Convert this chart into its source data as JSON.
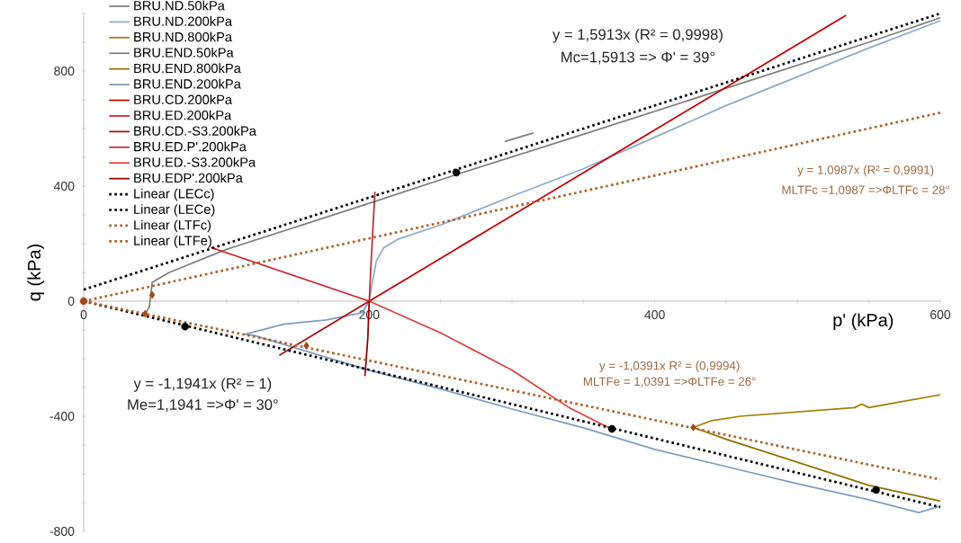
{
  "chart_data": {
    "type": "line",
    "xlabel": "p' (kPa)",
    "ylabel": "q (kPa)",
    "xlim": [
      0,
      600
    ],
    "ylim": [
      -800,
      1000
    ],
    "xticks": [
      0,
      {
        "value": 50,
        "label": null
      },
      {
        "value": 100,
        "label": null
      },
      {
        "value": 150,
        "label": null
      },
      200,
      {
        "value": 250,
        "label": null
      },
      {
        "value": 300,
        "label": null
      },
      {
        "value": 350,
        "label": null
      },
      400,
      {
        "value": 450,
        "label": null
      },
      {
        "value": 500,
        "label": null
      },
      {
        "value": 550,
        "label": null
      },
      600
    ],
    "yticks": [
      -800,
      {
        "value": -700,
        "label": null
      },
      {
        "value": -600,
        "label": null
      },
      {
        "value": -500,
        "label": null
      },
      -400,
      {
        "value": -300,
        "label": null
      },
      {
        "value": -200,
        "label": null
      },
      {
        "value": -100,
        "label": null
      },
      0,
      {
        "value": 100,
        "label": null
      },
      {
        "value": 200,
        "label": null
      },
      {
        "value": 300,
        "label": null
      },
      400,
      {
        "value": 500,
        "label": null
      },
      {
        "value": 600,
        "label": null
      },
      {
        "value": 700,
        "label": null
      },
      800,
      {
        "value": 900,
        "label": null
      },
      {
        "value": 1000,
        "label": null
      }
    ],
    "legend": "top left",
    "series": [
      {
        "name": "BRU.ND.50kPa",
        "color": "#7f7f7f",
        "x": [
          43,
          46,
          48,
          60,
          100,
          150,
          200,
          261,
          350,
          450,
          550,
          600
        ],
        "values": [
          -44,
          -20,
          66,
          100,
          180,
          260,
          340,
          440,
          580,
          740,
          900,
          985
        ]
      },
      {
        "name": "BRU.ND.200kPa",
        "color": "#8faac8",
        "x": [
          200,
          202,
          205,
          210,
          220,
          250,
          300,
          350,
          400,
          450,
          500,
          550,
          600
        ],
        "values": [
          0,
          60,
          140,
          185,
          215,
          265,
          365,
          460,
          570,
          680,
          780,
          880,
          975
        ]
      },
      {
        "name": "BRU.ND.800kPa",
        "color": "#a08000",
        "x": [
          427,
          440,
          460,
          500,
          540,
          545,
          550,
          600
        ],
        "values": [
          -439,
          -415,
          -400,
          -385,
          -370,
          -358,
          -370,
          -325
        ]
      },
      {
        "name": "BRU.END.50kPa",
        "color": "#7f7f7f",
        "x": [
          295,
          305,
          315
        ],
        "values": [
          555,
          570,
          585
        ]
      },
      {
        "name": "BRU.END.800kPa",
        "color": "#8c7000",
        "x": [
          427,
          450,
          500,
          550,
          600
        ],
        "values": [
          -439,
          -480,
          -560,
          -640,
          -695
        ]
      },
      {
        "name": "BRU.END.200kPa",
        "color": "#7f9cc0",
        "x": [
          200,
          195,
          170,
          140,
          113,
          120,
          150,
          200,
          250,
          300,
          350,
          400,
          450,
          500,
          550,
          585,
          600
        ],
        "values": [
          0,
          -40,
          -65,
          -80,
          -115,
          -120,
          -165,
          -240,
          -305,
          -375,
          -440,
          -515,
          -575,
          -635,
          -690,
          -735,
          -712
        ]
      },
      {
        "name": "BRU.CD.200kPa",
        "color": "#c00000",
        "x": [
          200,
          534
        ],
        "values": [
          0,
          994
        ]
      },
      {
        "name": "BRU.ED.200kPa",
        "color": "#d0202a",
        "x": [
          200,
          89
        ],
        "values": [
          0,
          187
        ]
      },
      {
        "name": "BRU.CD.-S3.200kPa",
        "color": "#a01010",
        "x": [
          200,
          137
        ],
        "values": [
          0,
          -188
        ]
      },
      {
        "name": "BRU.ED.P'.200kPa",
        "color": "#b83040",
        "x": [
          200,
          202,
          204
        ],
        "values": [
          0,
          200,
          380
        ]
      },
      {
        "name": "BRU.ED.-S3.200kPa",
        "color": "#d8403a",
        "x": [
          200,
          250,
          300,
          340,
          370
        ],
        "values": [
          0,
          -110,
          -240,
          -370,
          -445
        ]
      },
      {
        "name": "BRU.EDP'.200kPa",
        "color": "#900000",
        "x": [
          200,
          199,
          197
        ],
        "values": [
          0,
          -130,
          -260
        ]
      },
      {
        "name": "Linear (LECc)",
        "color": "#000000",
        "line_style": "dotted",
        "x": [
          0,
          600
        ],
        "values": [
          40,
          1000
        ]
      },
      {
        "name": "Linear (LECe)",
        "color": "#000000",
        "line_style": "dotted",
        "x": [
          0,
          600
        ],
        "values": [
          0,
          -716
        ]
      },
      {
        "name": "Linear (LTFc)",
        "color": "#b0602a",
        "line_style": "dotted",
        "x": [
          0,
          600
        ],
        "values": [
          0,
          655
        ]
      },
      {
        "name": "Linear (LTFe)",
        "color": "#b0602a",
        "line_style": "dotted",
        "x": [
          0,
          600
        ],
        "values": [
          0,
          -620
        ]
      },
      {
        "type": "scatter",
        "marker": "circle",
        "color": "#000000",
        "x": [
          71,
          261,
          370,
          555
        ],
        "values": [
          -88,
          447,
          -444,
          -656
        ]
      },
      {
        "type": "scatter",
        "marker": "diamond",
        "color": "#9c4a1a",
        "x": [
          48,
          43,
          156,
          427
        ],
        "values": [
          22,
          -44,
          -155,
          -439
        ]
      },
      {
        "type": "scatter",
        "marker": "circle",
        "color": "#9c4a1a",
        "x": [
          0
        ],
        "values": [
          0
        ]
      }
    ],
    "annotations": [
      "y = 1,5913x  (R² = 0,9998)",
      "Mc=1,5913 => Φ' = 39°",
      "y = 1,0987x (R² = 0,9991)",
      "MLTFc =1,0987 =>ΦLTFc = 28°",
      "y = -1,1941x  (R² = 1)",
      "Me=1,1941  =>Φ' = 30°",
      "y = -1,0391x R² = (0,9994)",
      "MLTFe = 1,0391 =>ΦLTFe = 26°"
    ]
  }
}
